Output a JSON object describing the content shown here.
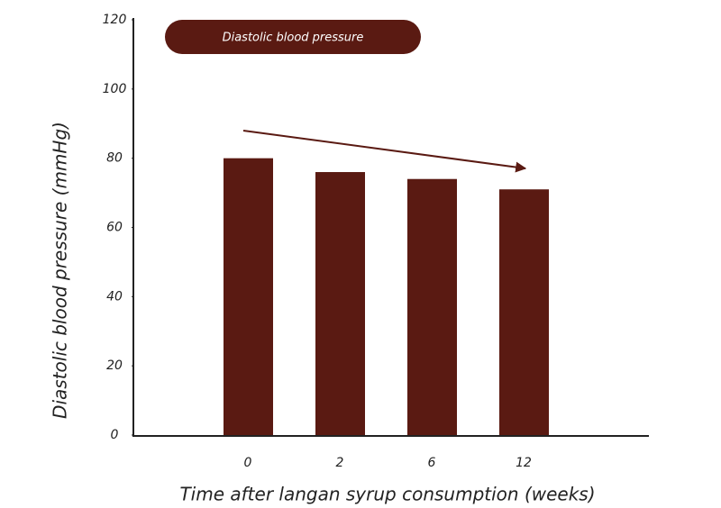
{
  "chart_data": {
    "type": "bar",
    "categories": [
      "0",
      "2",
      "6",
      "12"
    ],
    "values": [
      80,
      76,
      74,
      71
    ],
    "color": "#5a1a12",
    "xlabel": "Time after langan syrup consumption (weeks)",
    "ylabel": "Diastolic blood pressure (mmHg)",
    "legend": "Diastolic blood pressure",
    "ylim": [
      0,
      120
    ],
    "yticks": [
      0,
      20,
      40,
      60,
      80,
      100,
      120
    ]
  }
}
